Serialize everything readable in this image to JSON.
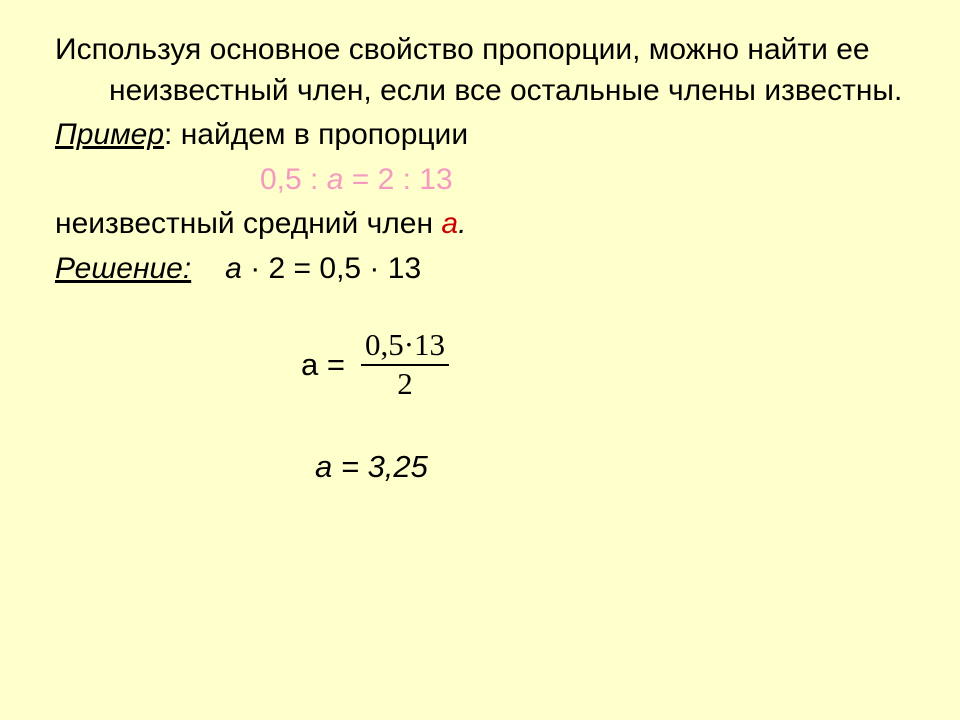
{
  "colors": {
    "background": "#ffffcb",
    "text": "#000000",
    "accent_pink": "#f49ac1",
    "accent_red": "#cc0000"
  },
  "typography": {
    "body_family": "Arial",
    "body_size_pt": 22,
    "math_frac_family": "Times New Roman"
  },
  "p1": {
    "full": "Используя основное свойство пропорции, можно найти ее неизвестный член, если все остальные члены известны."
  },
  "p2": {
    "label": "Пример",
    "rest": ": найдем в пропорции"
  },
  "eq1": {
    "lhs1": "0,5 : ",
    "var": "а",
    "rhs": " = 2 : 13"
  },
  "p3": {
    "before": "неизвестный средний член ",
    "var": "а",
    "after": "."
  },
  "p4": {
    "label": "Решение:",
    "eq_lhs_var": "а",
    "eq_lhs_rest": " · 2 = 0,5 · 13"
  },
  "frac": {
    "lhs": "а = ",
    "num": "0,5·13",
    "den": "2"
  },
  "result": {
    "text": "а = 3,25"
  }
}
